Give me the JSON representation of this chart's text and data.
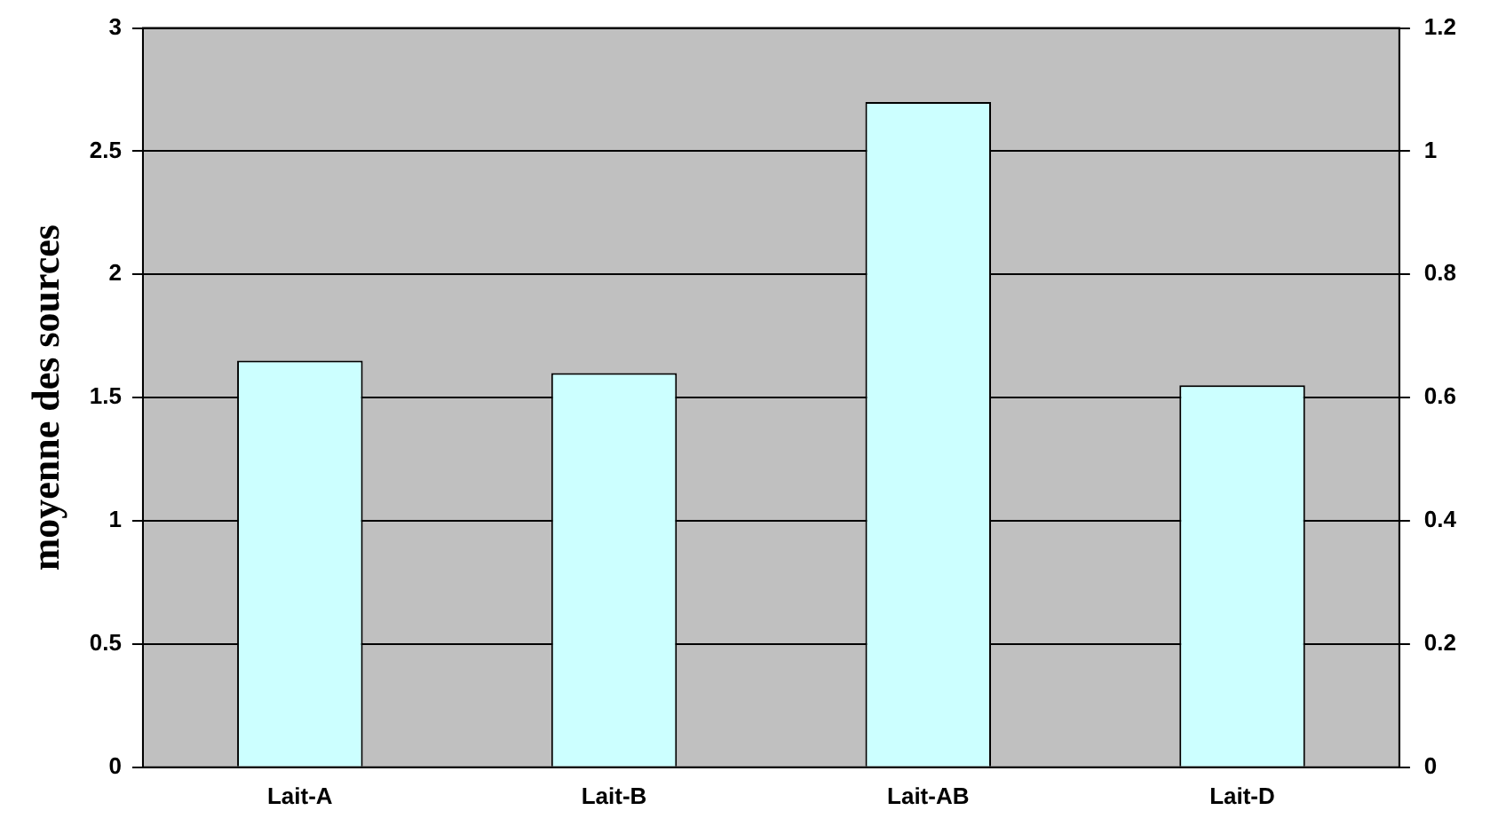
{
  "chart_data": {
    "type": "bar",
    "ylabel": "moyenne des sources",
    "categories": [
      "Lait-A",
      "Lait-B",
      "Lait-AB",
      "Lait-D"
    ],
    "values": [
      1.65,
      1.6,
      2.7,
      1.55
    ],
    "color": "#ccffff",
    "ylim": [
      0,
      3
    ],
    "yticks": [
      0,
      0.5,
      1,
      1.5,
      2,
      2.5,
      3
    ],
    "y2lim": [
      0,
      1.2
    ],
    "y2ticks": [
      0,
      0.2,
      0.4,
      0.6,
      0.8,
      1,
      1.2
    ],
    "grid": "y",
    "legend": false
  }
}
